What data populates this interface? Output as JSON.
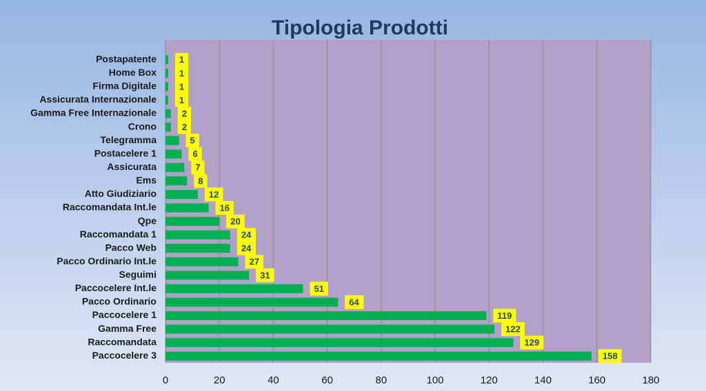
{
  "chart_data": {
    "type": "bar",
    "orientation": "horizontal",
    "title": "Tipologia Prodotti",
    "categories": [
      "Postapatente",
      "Home Box",
      "Firma Digitale",
      "Assicurata Internazionale",
      "Gamma Free Internazionale",
      "Crono",
      "Telegramma",
      "Postacelere 1",
      "Assicurata",
      "Ems",
      "Atto Giudiziario",
      "Raccomandata Int.le",
      "Qpe",
      "Raccomandata 1",
      "Pacco Web",
      "Pacco Ordinario Int.le",
      "Seguimi",
      "Paccocelere Int.le",
      "Pacco Ordinario",
      "Paccocelere 1",
      "Gamma Free",
      "Raccomandata",
      "Paccocelere 3"
    ],
    "values": [
      1,
      1,
      1,
      1,
      2,
      2,
      5,
      6,
      7,
      8,
      12,
      16,
      20,
      24,
      24,
      27,
      31,
      51,
      64,
      119,
      122,
      129,
      158
    ],
    "color": "#00b050",
    "label_background": "#ffff00",
    "xlim": [
      0,
      180
    ],
    "xticks": [
      0,
      20,
      40,
      60,
      80,
      100,
      120,
      140,
      160,
      180
    ],
    "grid": true
  }
}
